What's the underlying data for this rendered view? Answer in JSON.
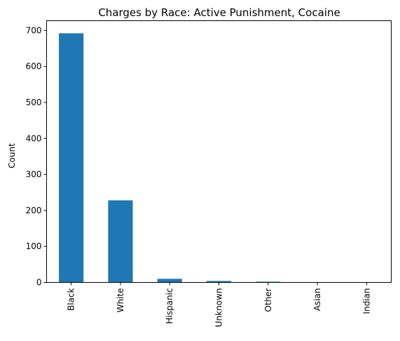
{
  "chart_data": {
    "type": "bar",
    "title": "Charges by Race: Active Punishment, Cocaine",
    "xlabel": "",
    "ylabel": "Count",
    "categories": [
      "Black",
      "White",
      "Hispanic",
      "Unknown",
      "Other",
      "Asian",
      "Indian"
    ],
    "values": [
      692,
      228,
      10,
      4,
      2,
      1,
      1
    ],
    "ylim": [
      0,
      727
    ],
    "yticks": [
      0,
      100,
      200,
      300,
      400,
      500,
      600,
      700
    ],
    "grid": false,
    "legend": "none",
    "bar_color": "#1f77b4"
  }
}
